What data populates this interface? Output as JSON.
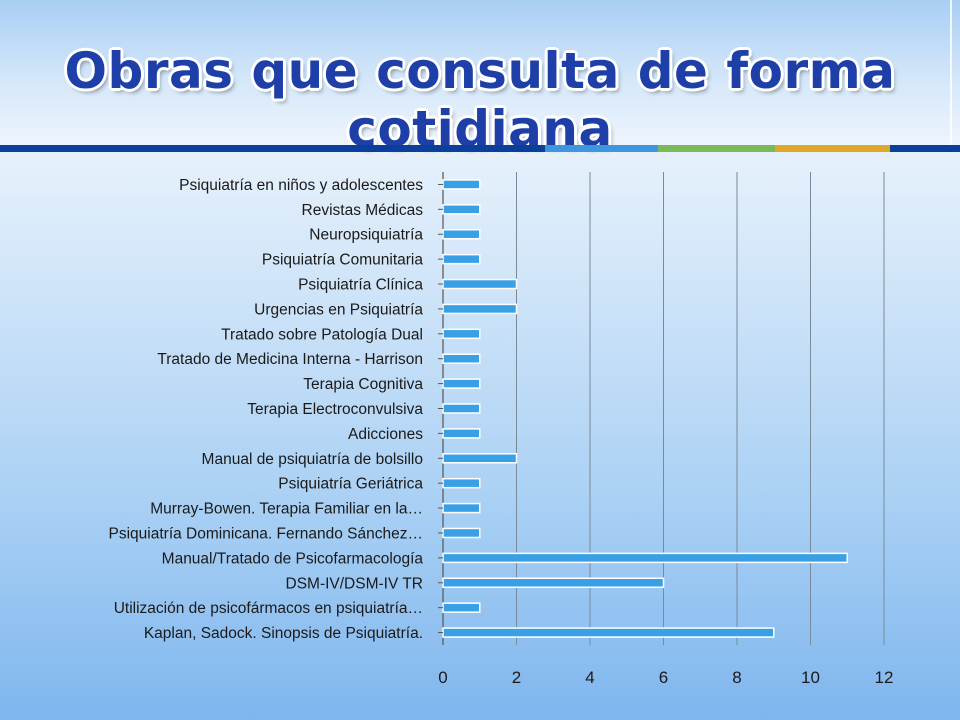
{
  "slide": {
    "title": "Obras que consulta de forma cotidiana",
    "band_colors": [
      "#0b3f9c",
      "#3e96dc",
      "#79b95a",
      "#e0a828",
      "#0b3f9c"
    ]
  },
  "chart_data": {
    "type": "bar",
    "orientation": "horizontal",
    "categories": [
      "Psiquiatría en niños y adolescentes",
      "Revistas Médicas",
      "Neuropsiquiatría",
      "Psiquiatría Comunitaria",
      "Psiquiatría Clínica",
      "Urgencias en Psiquiatría",
      "Tratado sobre Patología Dual",
      "Tratado de Medicina Interna - Harrison",
      "Terapia Cognitiva",
      "Terapia Electroconvulsiva",
      "Adicciones",
      "Manual de psiquiatría de bolsillo",
      "Psiquiatría Geriátrica",
      "Murray-Bowen. Terapia Familiar en la…",
      "Psiquiatría Dominicana. Fernando Sánchez…",
      "Manual/Tratado de Psicofarmacología",
      "DSM-IV/DSM-IV TR",
      "Utilización de psicofármacos en psiquiatría…",
      "Kaplan, Sadock. Sinopsis de Psiquiatría."
    ],
    "values": [
      1,
      1,
      1,
      1,
      2,
      2,
      1,
      1,
      1,
      1,
      1,
      2,
      1,
      1,
      1,
      11,
      6,
      1,
      9
    ],
    "xlim": [
      0,
      12
    ],
    "xticks": [
      "0",
      "2",
      "4",
      "6",
      "8",
      "10",
      "12"
    ],
    "grid": true,
    "bar_color": "#3aa0e6",
    "xlabel": "",
    "ylabel": ""
  }
}
